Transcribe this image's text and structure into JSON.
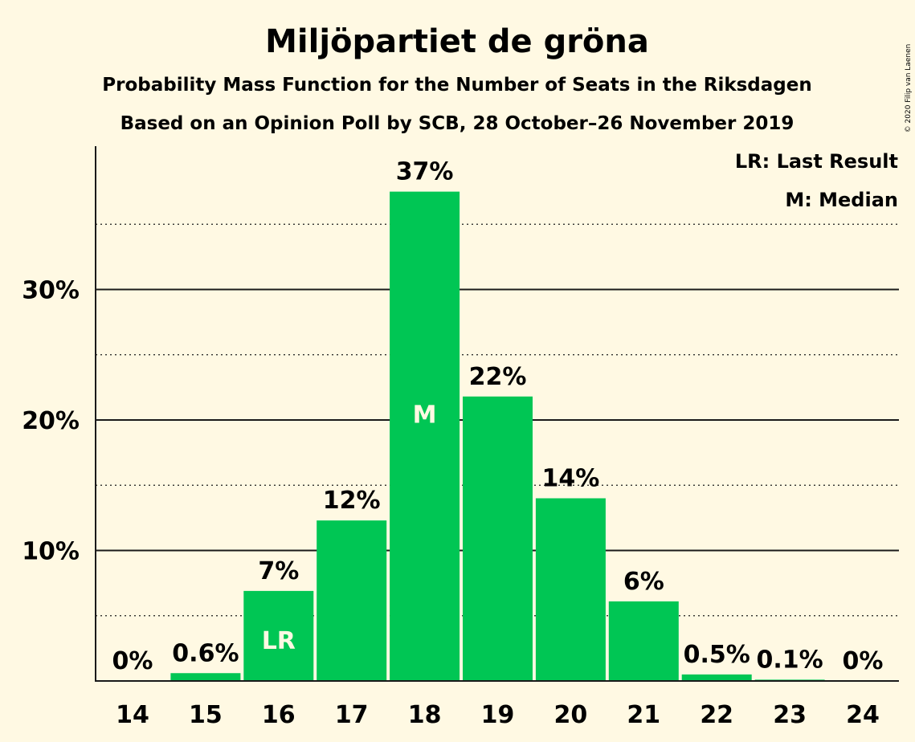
{
  "chart_data": {
    "type": "bar",
    "title": "Miljöpartiet de gröna",
    "subtitle": "Probability Mass Function for the Number of Seats in the Riksdagen",
    "subtitle2": "Based on an Opinion Poll by SCB, 28 October–26 November 2019",
    "categories": [
      "14",
      "15",
      "16",
      "17",
      "18",
      "19",
      "20",
      "21",
      "22",
      "23",
      "24"
    ],
    "values": [
      0.0,
      0.6,
      6.9,
      12.3,
      37.5,
      21.8,
      14.0,
      6.1,
      0.5,
      0.1,
      0.0
    ],
    "data_labels": [
      "0%",
      "0.6%",
      "7%",
      "12%",
      "37%",
      "22%",
      "14%",
      "6%",
      "0.5%",
      "0.1%",
      "0%"
    ],
    "markers": [
      {
        "category": "16",
        "label": "LR"
      },
      {
        "category": "18",
        "label": "M"
      }
    ],
    "yticks": [
      10,
      20,
      30
    ],
    "ytick_labels": [
      "10%",
      "20%",
      "30%"
    ],
    "ylim": [
      0,
      41
    ],
    "grid": true,
    "legend": [
      "LR: Last Result",
      "M: Median"
    ],
    "legend_position": "top-right",
    "bar_color": "#00C654",
    "copyright": "© 2020 Filip van Laenen"
  }
}
